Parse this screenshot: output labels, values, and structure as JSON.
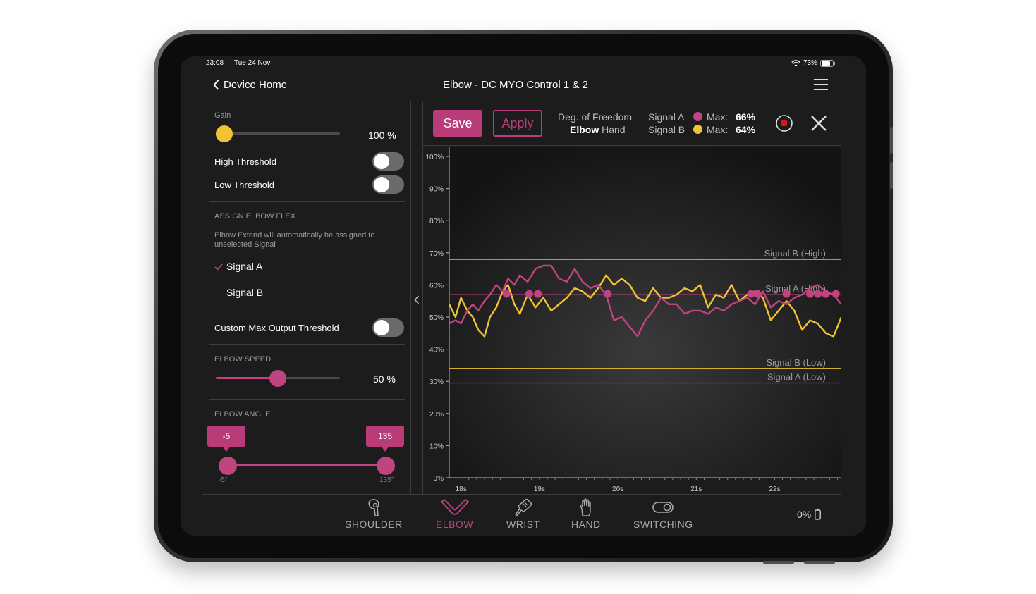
{
  "status_bar": {
    "time": "23:08",
    "date": "Tue 24 Nov",
    "battery": "73%"
  },
  "nav": {
    "back_label": "Device Home",
    "title": "Elbow - DC MYO Control 1 & 2"
  },
  "left_panel": {
    "gain": {
      "label": "Gain",
      "value": "100 %",
      "level": 0.05
    },
    "high_threshold": {
      "label": "High Threshold",
      "on": false
    },
    "low_threshold": {
      "label": "Low Threshold",
      "on": false
    },
    "assign": {
      "heading": "ASSIGN ELBOW FLEX",
      "note": "Elbow Extend will automatically be assigned to unselected Signal",
      "options": [
        {
          "label": "Signal A",
          "selected": true
        },
        {
          "label": "Signal B",
          "selected": false
        }
      ]
    },
    "custom_max": {
      "label": "Custom Max Output Threshold",
      "on": false
    },
    "speed": {
      "heading": "ELBOW SPEED",
      "value": "50 %",
      "level": 0.5
    },
    "angle": {
      "heading": "ELBOW ANGLE",
      "min_value": "-5",
      "max_value": "135",
      "min_label": "-5°",
      "max_label": "135°"
    }
  },
  "toolbar": {
    "save_label": "Save",
    "apply_label": "Apply",
    "dof_label": "Deg. of Freedom",
    "dof_elbow": "Elbow",
    "dof_hand": "Hand",
    "signal_a": "Signal A",
    "signal_b": "Signal B",
    "max_label": "Max:",
    "signal_a_max": "66%",
    "signal_b_max": "64%"
  },
  "colors": {
    "signal_a": "#c0447f",
    "signal_b": "#f1c232",
    "accent": "#b93b78",
    "background": "#1c1c1d"
  },
  "chart_data": {
    "type": "line",
    "ylim": [
      0,
      100
    ],
    "y_ticks": [
      "0%",
      "10%",
      "20%",
      "30%",
      "40%",
      "50%",
      "60%",
      "70%",
      "80%",
      "90%",
      "100%"
    ],
    "x_ticks": [
      "18s",
      "19s",
      "20s",
      "21s",
      "22s"
    ],
    "xlim": [
      17.85,
      22.85
    ],
    "thresholds": [
      {
        "label": "Signal B (High)",
        "value": 68,
        "series": "b"
      },
      {
        "label": "Signal A (High)",
        "value": 57,
        "series": "a"
      },
      {
        "label": "Signal B (Low)",
        "value": 34,
        "series": "b"
      },
      {
        "label": "Signal A (Low)",
        "value": 29.5,
        "series": "a"
      }
    ],
    "series": [
      {
        "key": "a",
        "x": [
          17.85,
          17.93,
          18.0,
          18.08,
          18.15,
          18.22,
          18.3,
          18.37,
          18.45,
          18.53,
          18.6,
          18.68,
          18.75,
          18.85,
          18.95,
          19.05,
          19.15,
          19.25,
          19.35,
          19.45,
          19.55,
          19.65,
          19.75,
          19.85,
          19.95,
          20.05,
          20.15,
          20.25,
          20.35,
          20.45,
          20.55,
          20.65,
          20.75,
          20.85,
          20.95,
          21.05,
          21.15,
          21.25,
          21.35,
          21.45,
          21.55,
          21.65,
          21.75,
          21.85,
          21.95,
          22.05,
          22.15,
          22.25,
          22.35,
          22.45,
          22.55,
          22.65,
          22.75,
          22.85
        ],
        "y": [
          48,
          49,
          48,
          52,
          54,
          52,
          55,
          57,
          60,
          58,
          62,
          60,
          63,
          61,
          65,
          66,
          66,
          62,
          61,
          65,
          61,
          59,
          60,
          57,
          49,
          50,
          47,
          44,
          49,
          52,
          56,
          54,
          54,
          51,
          52,
          52,
          51,
          53,
          52,
          54,
          55,
          56,
          54,
          58,
          53,
          55,
          54,
          56,
          57,
          59,
          60,
          58,
          57,
          54
        ]
      },
      {
        "key": "b",
        "x": [
          17.85,
          17.93,
          18.0,
          18.08,
          18.15,
          18.22,
          18.3,
          18.37,
          18.45,
          18.53,
          18.6,
          18.68,
          18.75,
          18.85,
          18.95,
          19.05,
          19.15,
          19.25,
          19.35,
          19.45,
          19.55,
          19.65,
          19.75,
          19.85,
          19.95,
          20.05,
          20.15,
          20.25,
          20.35,
          20.45,
          20.55,
          20.65,
          20.75,
          20.85,
          20.95,
          21.05,
          21.15,
          21.25,
          21.35,
          21.45,
          21.55,
          21.65,
          21.75,
          21.85,
          21.95,
          22.05,
          22.15,
          22.25,
          22.35,
          22.45,
          22.55,
          22.65,
          22.75,
          22.85
        ],
        "y": [
          54,
          50,
          56,
          52,
          50,
          46,
          44,
          50,
          53,
          58,
          60,
          54,
          51,
          57,
          53,
          56,
          52,
          54,
          56,
          59,
          58,
          56,
          59,
          63,
          60,
          62,
          60,
          56,
          55,
          59,
          56,
          56,
          57,
          59,
          58,
          60,
          53,
          57,
          56,
          60,
          55,
          57,
          58,
          56,
          49,
          52,
          55,
          52,
          46,
          49,
          48,
          45,
          44,
          50
        ]
      }
    ],
    "markers": [
      {
        "series": "a",
        "x": 18.58,
        "y": 57.2
      },
      {
        "series": "a",
        "x": 18.87,
        "y": 57.2
      },
      {
        "series": "a",
        "x": 18.98,
        "y": 57.2
      },
      {
        "series": "a",
        "x": 19.87,
        "y": 57.2
      },
      {
        "series": "a",
        "x": 21.7,
        "y": 57.2
      },
      {
        "series": "a",
        "x": 21.78,
        "y": 57.2
      },
      {
        "series": "a",
        "x": 22.15,
        "y": 57.2
      },
      {
        "series": "a",
        "x": 22.45,
        "y": 57.2
      },
      {
        "series": "a",
        "x": 22.55,
        "y": 57.2
      },
      {
        "series": "a",
        "x": 22.65,
        "y": 57.2
      },
      {
        "series": "a",
        "x": 22.78,
        "y": 57.2
      }
    ]
  },
  "bottom_nav": {
    "tabs": [
      {
        "label": "SHOULDER",
        "icon": "shoulder-icon",
        "active": false
      },
      {
        "label": "ELBOW",
        "icon": "elbow-icon",
        "active": true
      },
      {
        "label": "WRIST",
        "icon": "wrist-icon",
        "active": false
      },
      {
        "label": "HAND",
        "icon": "hand-icon",
        "active": false
      },
      {
        "label": "SWITCHING",
        "icon": "switch-icon",
        "active": false
      }
    ],
    "battery_label": "0%"
  }
}
